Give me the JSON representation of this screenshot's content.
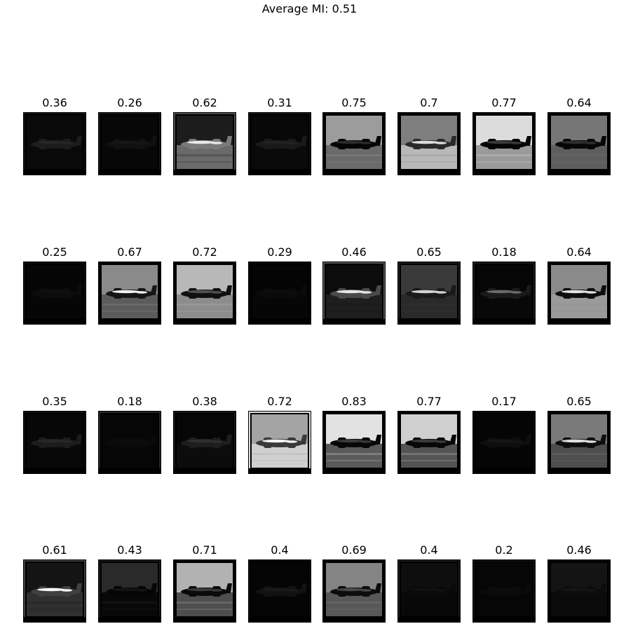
{
  "title": "Average MI: 0.51",
  "tiles": [
    {
      "label": "0.36",
      "sky": "#0a0a0a",
      "ground": "#090909",
      "plane": "#1c1c1c",
      "highlight": "#262626",
      "border": "#101010"
    },
    {
      "label": "0.26",
      "sky": "#070707",
      "ground": "#070707",
      "plane": "#111111",
      "highlight": "#161616",
      "border": "#161616"
    },
    {
      "label": "0.62",
      "sky": "#1c1c1c",
      "ground": "#6a6a6a",
      "plane": "#7a7a7a",
      "highlight": "#e8e8e8",
      "border": "#4a4a4a"
    },
    {
      "label": "0.31",
      "sky": "#080808",
      "ground": "#0a0a0a",
      "plane": "#1a1a1a",
      "highlight": "#222222",
      "border": "#121212"
    },
    {
      "label": "0.75",
      "sky": "#9c9c9c",
      "ground": "#6a6a6a",
      "plane": "#050505",
      "highlight": "#2a2a2a",
      "border": "#000000"
    },
    {
      "label": "0.7",
      "sky": "#7e7e7e",
      "ground": "#b8b8b8",
      "plane": "#2a2a2a",
      "highlight": "#dddddd",
      "border": "#000000"
    },
    {
      "label": "0.77",
      "sky": "#dcdcdc",
      "ground": "#9a9a9a",
      "plane": "#050505",
      "highlight": "#3a3a3a",
      "border": "#000000"
    },
    {
      "label": "0.64",
      "sky": "#767676",
      "ground": "#5e5e5e",
      "plane": "#070707",
      "highlight": "#2e2e2e",
      "border": "#000000"
    },
    {
      "label": "0.25",
      "sky": "#050505",
      "ground": "#060606",
      "plane": "#0c0c0c",
      "highlight": "#101010",
      "border": "#0e0e0e"
    },
    {
      "label": "0.67",
      "sky": "#8a8a8a",
      "ground": "#5c5c5c",
      "plane": "#151515",
      "highlight": "#f0f0f0",
      "border": "#000000"
    },
    {
      "label": "0.72",
      "sky": "#b8b8b8",
      "ground": "#8c8c8c",
      "plane": "#101010",
      "highlight": "#505050",
      "border": "#000000"
    },
    {
      "label": "0.29",
      "sky": "#040404",
      "ground": "#060606",
      "plane": "#0a0a0a",
      "highlight": "#0e0e0e",
      "border": "#080808"
    },
    {
      "label": "0.46",
      "sky": "#0c0c0c",
      "ground": "#1e1e1e",
      "plane": "#4a4a4a",
      "highlight": "#e6e6e6",
      "border": "#555555"
    },
    {
      "label": "0.65",
      "sky": "#3a3a3a",
      "ground": "#2a2a2a",
      "plane": "#1a1a1a",
      "highlight": "#d4d4d4",
      "border": "#1e1e1e"
    },
    {
      "label": "0.18",
      "sky": "#060606",
      "ground": "#080808",
      "plane": "#1a1a1a",
      "highlight": "#6a6a6a",
      "border": "#1c1c1c"
    },
    {
      "label": "0.64",
      "sky": "#8a8a8a",
      "ground": "#9a9a9a",
      "plane": "#0e0e0e",
      "highlight": "#e2e2e2",
      "border": "#000000"
    },
    {
      "label": "0.35",
      "sky": "#070707",
      "ground": "#080808",
      "plane": "#1c1c1c",
      "highlight": "#282828",
      "border": "#0e0e0e"
    },
    {
      "label": "0.18",
      "sky": "#060606",
      "ground": "#060606",
      "plane": "#0a0a0a",
      "highlight": "#0c0c0c",
      "border": "#262626"
    },
    {
      "label": "0.38",
      "sky": "#060606",
      "ground": "#0c0c0c",
      "plane": "#1e1e1e",
      "highlight": "#303030",
      "border": "#161616"
    },
    {
      "label": "0.72",
      "sky": "#a4a4a4",
      "ground": "#d0d0d0",
      "plane": "#3a3a3a",
      "highlight": "#f2f2f2",
      "border": "#dddddd"
    },
    {
      "label": "0.83",
      "sky": "#e2e2e2",
      "ground": "#5a5a5a",
      "plane": "#070707",
      "highlight": "#3a3a3a",
      "border": "#000000"
    },
    {
      "label": "0.77",
      "sky": "#d0d0d0",
      "ground": "#545454",
      "plane": "#080808",
      "highlight": "#3a3a3a",
      "border": "#000000"
    },
    {
      "label": "0.17",
      "sky": "#050505",
      "ground": "#050505",
      "plane": "#0e0e0e",
      "highlight": "#161616",
      "border": "#0a0a0a"
    },
    {
      "label": "0.65",
      "sky": "#7a7a7a",
      "ground": "#4e4e4e",
      "plane": "#0e0e0e",
      "highlight": "#dedede",
      "border": "#000000"
    },
    {
      "label": "0.61",
      "sky": "#141414",
      "ground": "#303030",
      "plane": "#404040",
      "highlight": "#f4f4f4",
      "border": "#404040"
    },
    {
      "label": "0.43",
      "sky": "#2a2a2a",
      "ground": "#080808",
      "plane": "#050505",
      "highlight": "#141414",
      "border": "#1a1a1a"
    },
    {
      "label": "0.71",
      "sky": "#b2b2b2",
      "ground": "#4e4e4e",
      "plane": "#0a0a0a",
      "highlight": "#3a3a3a",
      "border": "#000000"
    },
    {
      "label": "0.4",
      "sky": "#050505",
      "ground": "#050505",
      "plane": "#121212",
      "highlight": "#1a1a1a",
      "border": "#0c0c0c"
    },
    {
      "label": "0.69",
      "sky": "#848484",
      "ground": "#585858",
      "plane": "#0c0c0c",
      "highlight": "#484848",
      "border": "#000000"
    },
    {
      "label": "0.4",
      "sky": "#0e0e0e",
      "ground": "#080808",
      "plane": "#0a0a0a",
      "highlight": "#111111",
      "border": "#1e1e1e"
    },
    {
      "label": "0.2",
      "sky": "#060606",
      "ground": "#060606",
      "plane": "#0a0a0a",
      "highlight": "#0c0c0c",
      "border": "#141414"
    },
    {
      "label": "0.46",
      "sky": "#141414",
      "ground": "#0a0a0a",
      "plane": "#0c0c0c",
      "highlight": "#161616",
      "border": "#0a0a0a"
    }
  ]
}
